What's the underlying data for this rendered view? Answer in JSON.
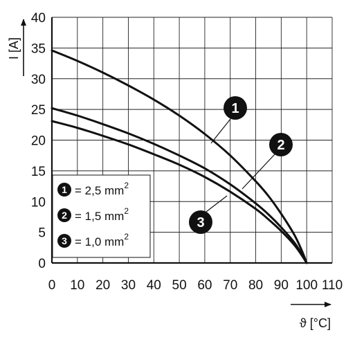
{
  "chart_data": {
    "type": "line",
    "title": "",
    "xlabel": "ϑ [°C]",
    "ylabel": "I [A]",
    "xlim": [
      0,
      110
    ],
    "ylim": [
      0,
      40
    ],
    "x_ticks": [
      "0",
      "10",
      "20",
      "30",
      "40",
      "50",
      "60",
      "70",
      "80",
      "90",
      "100",
      "110"
    ],
    "y_ticks": [
      "0",
      "5",
      "10",
      "15",
      "20",
      "25",
      "30",
      "35",
      "40"
    ],
    "grid": true,
    "series": [
      {
        "name": "1",
        "label_prefix": "= 2,5 mm",
        "label_sup": "2",
        "x": [
          0,
          10,
          20,
          30,
          40,
          50,
          60,
          70,
          80,
          85,
          90,
          95,
          98,
          100
        ],
        "y": [
          34.6,
          32.9,
          31.0,
          28.9,
          26.6,
          24.0,
          21.0,
          17.5,
          13.3,
          10.9,
          8.0,
          4.7,
          2.1,
          0
        ]
      },
      {
        "name": "2",
        "label_prefix": "= 1,5 mm",
        "label_sup": "2",
        "x": [
          0,
          10,
          20,
          30,
          40,
          50,
          60,
          70,
          80,
          85,
          90,
          95,
          98,
          100
        ],
        "y": [
          25.2,
          24.0,
          22.6,
          21.1,
          19.4,
          17.5,
          15.4,
          12.8,
          9.7,
          7.9,
          5.8,
          3.4,
          1.5,
          0
        ]
      },
      {
        "name": "3",
        "label_prefix": "= 1,0 mm",
        "label_sup": "2",
        "x": [
          0,
          10,
          20,
          30,
          40,
          50,
          60,
          70,
          80,
          85,
          90,
          95,
          98,
          100
        ],
        "y": [
          23.1,
          22.0,
          20.7,
          19.3,
          17.7,
          16.0,
          14.0,
          11.6,
          8.8,
          7.1,
          5.2,
          3.0,
          1.3,
          0
        ]
      }
    ]
  }
}
